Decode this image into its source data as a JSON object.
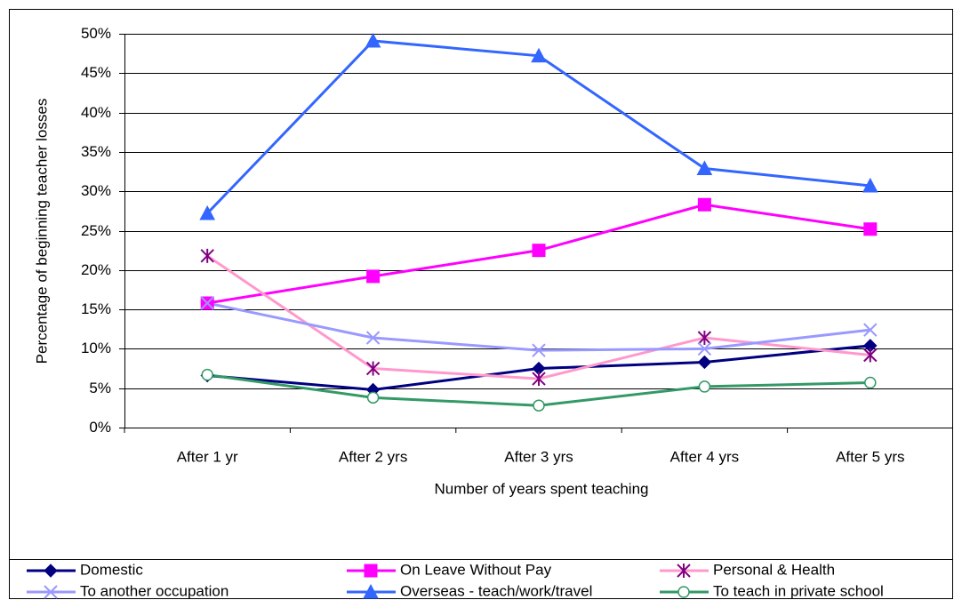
{
  "chart_data": {
    "type": "line",
    "y_axis_label": "Percentage of beginning teacher losses",
    "x_axis_label": "Number of years spent teaching",
    "categories": [
      "After 1 yr",
      "After 2 yrs",
      "After 3 yrs",
      "After 4 yrs",
      "After 5 yrs"
    ],
    "ylim": [
      0,
      50
    ],
    "yticks": [
      {
        "value": 0,
        "label": "0%"
      },
      {
        "value": 5,
        "label": "5%"
      },
      {
        "value": 10,
        "label": "10%"
      },
      {
        "value": 15,
        "label": "15%"
      },
      {
        "value": 20,
        "label": "20%"
      },
      {
        "value": 25,
        "label": "25%"
      },
      {
        "value": 30,
        "label": "30%"
      },
      {
        "value": 35,
        "label": "35%"
      },
      {
        "value": 40,
        "label": "40%"
      },
      {
        "value": 45,
        "label": "45%"
      },
      {
        "value": 50,
        "label": "50%"
      }
    ],
    "grid": true,
    "legend": "bottom",
    "series": [
      {
        "name": "Domestic",
        "color": "#000080",
        "marker_color": "#000080",
        "marker": "diamond",
        "values": [
          6.6,
          4.8,
          7.5,
          8.3,
          10.4
        ]
      },
      {
        "name": "On Leave Without Pay",
        "color": "#ff00ff",
        "marker_color": "#ff00ff",
        "marker": "square",
        "values": [
          15.8,
          19.2,
          22.5,
          28.3,
          25.2
        ]
      },
      {
        "name": "Personal & Health",
        "color": "#ff99cc",
        "marker_color": "#800080",
        "marker": "star",
        "values": [
          21.8,
          7.5,
          6.2,
          11.4,
          9.2
        ]
      },
      {
        "name": "To another occupation",
        "color": "#9999ff",
        "marker_color": "#9999ff",
        "marker": "x",
        "values": [
          15.8,
          11.4,
          9.8,
          10.0,
          12.4
        ]
      },
      {
        "name": "Overseas - teach/work/travel",
        "color": "#3366ff",
        "marker_color": "#3366ff",
        "marker": "triangle",
        "values": [
          27.2,
          49.1,
          47.2,
          32.9,
          30.7
        ]
      },
      {
        "name": "To teach in private school",
        "color": "#339966",
        "marker_color": "#339966",
        "marker": "circle",
        "values": [
          6.7,
          3.8,
          2.8,
          5.2,
          5.7
        ]
      }
    ]
  }
}
